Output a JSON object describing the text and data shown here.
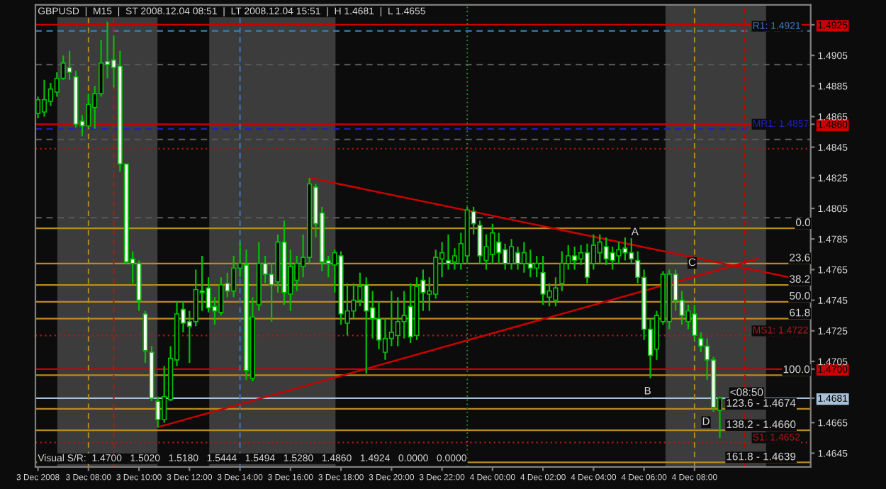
{
  "chart_data": {
    "type": "candlestick",
    "title": "GBPUSD  |  M15  |  ST 2008.12.04 08:51  |  LT 2008.12.04 15:51  |  H 1.4681  |  L 1.4655",
    "color": "#00c000",
    "x": [
      "2008-12-03T06:00",
      "2008-12-03T06:15",
      "2008-12-03T06:30",
      "2008-12-03T06:45",
      "2008-12-03T07:00",
      "2008-12-03T07:15",
      "2008-12-03T07:30",
      "2008-12-03T07:45",
      "2008-12-03T08:00",
      "2008-12-03T08:15",
      "2008-12-03T08:30",
      "2008-12-03T08:45",
      "2008-12-03T09:00",
      "2008-12-03T09:15",
      "2008-12-03T09:30",
      "2008-12-03T09:45",
      "2008-12-03T10:00",
      "2008-12-03T10:15",
      "2008-12-03T10:30",
      "2008-12-03T10:45",
      "2008-12-03T11:00",
      "2008-12-03T11:15",
      "2008-12-03T11:30",
      "2008-12-03T11:45",
      "2008-12-03T12:00",
      "2008-12-03T12:15",
      "2008-12-03T12:30",
      "2008-12-03T12:45",
      "2008-12-03T13:00",
      "2008-12-03T13:15",
      "2008-12-03T13:30",
      "2008-12-03T13:45",
      "2008-12-03T14:00",
      "2008-12-03T14:15",
      "2008-12-03T14:30",
      "2008-12-03T14:45",
      "2008-12-03T15:00",
      "2008-12-03T15:15",
      "2008-12-03T15:30",
      "2008-12-03T15:45",
      "2008-12-03T16:00",
      "2008-12-03T16:15",
      "2008-12-03T16:30",
      "2008-12-03T16:45",
      "2008-12-03T17:00",
      "2008-12-03T17:15",
      "2008-12-03T17:30",
      "2008-12-03T17:45",
      "2008-12-03T18:00",
      "2008-12-03T18:15",
      "2008-12-03T18:30",
      "2008-12-03T18:45",
      "2008-12-03T19:00",
      "2008-12-03T19:15",
      "2008-12-03T19:30",
      "2008-12-03T19:45",
      "2008-12-03T20:00",
      "2008-12-03T20:15",
      "2008-12-03T20:30",
      "2008-12-03T20:45",
      "2008-12-03T21:00",
      "2008-12-03T21:15",
      "2008-12-03T21:30",
      "2008-12-03T21:45",
      "2008-12-03T22:00",
      "2008-12-03T22:15",
      "2008-12-03T22:30",
      "2008-12-03T22:45",
      "2008-12-03T23:00",
      "2008-12-03T23:15",
      "2008-12-03T23:30",
      "2008-12-03T23:45",
      "2008-12-04T00:00",
      "2008-12-04T00:15",
      "2008-12-04T00:30",
      "2008-12-04T00:45",
      "2008-12-04T01:00",
      "2008-12-04T01:15",
      "2008-12-04T01:30",
      "2008-12-04T01:45",
      "2008-12-04T02:00",
      "2008-12-04T02:15",
      "2008-12-04T02:30",
      "2008-12-04T02:45",
      "2008-12-04T03:00",
      "2008-12-04T03:15",
      "2008-12-04T03:30",
      "2008-12-04T03:45",
      "2008-12-04T04:00",
      "2008-12-04T04:15",
      "2008-12-04T04:30",
      "2008-12-04T04:45",
      "2008-12-04T05:00",
      "2008-12-04T05:15",
      "2008-12-04T05:30",
      "2008-12-04T05:45",
      "2008-12-04T06:00",
      "2008-12-04T06:15",
      "2008-12-04T06:30",
      "2008-12-04T06:45",
      "2008-12-04T07:00",
      "2008-12-04T07:15",
      "2008-12-04T07:30",
      "2008-12-04T07:45",
      "2008-12-04T08:00",
      "2008-12-04T08:15",
      "2008-12-04T08:30",
      "2008-12-04T08:45",
      "2008-12-04T09:00"
    ],
    "ohlc": [
      [
        1.4867,
        1.4878,
        1.4864,
        1.4876
      ],
      [
        1.4868,
        1.4889,
        1.4865,
        1.4876
      ],
      [
        1.4875,
        1.4887,
        1.4872,
        1.4883
      ],
      [
        1.4881,
        1.4894,
        1.4878,
        1.489
      ],
      [
        1.489,
        1.4905,
        1.4889,
        1.49
      ],
      [
        1.4897,
        1.4908,
        1.4889,
        1.4894
      ],
      [
        1.4891,
        1.4895,
        1.4858,
        1.486
      ],
      [
        1.4862,
        1.4866,
        1.4852,
        1.4859
      ],
      [
        1.4859,
        1.488,
        1.4858,
        1.4873
      ],
      [
        1.4871,
        1.4885,
        1.4857,
        1.488
      ],
      [
        1.488,
        1.4915,
        1.4878,
        1.49
      ],
      [
        1.4901,
        1.4927,
        1.489,
        1.4899
      ],
      [
        1.4902,
        1.4918,
        1.4884,
        1.4897
      ],
      [
        1.4898,
        1.4908,
        1.4829,
        1.4834
      ],
      [
        1.4834,
        1.4834,
        1.4769,
        1.477
      ],
      [
        1.4772,
        1.4777,
        1.4756,
        1.4769
      ],
      [
        1.4769,
        1.4771,
        1.4738,
        1.4745
      ],
      [
        1.4736,
        1.4738,
        1.4704,
        1.4712
      ],
      [
        1.4711,
        1.4715,
        1.4679,
        1.4681
      ],
      [
        1.4679,
        1.4682,
        1.4662,
        1.4667
      ],
      [
        1.4667,
        1.4702,
        1.4665,
        1.4682
      ],
      [
        1.468,
        1.4715,
        1.4679,
        1.4707
      ],
      [
        1.4706,
        1.4744,
        1.4702,
        1.4736
      ],
      [
        1.4739,
        1.4744,
        1.4724,
        1.473
      ],
      [
        1.4731,
        1.4738,
        1.4704,
        1.4728
      ],
      [
        1.4731,
        1.4765,
        1.4728,
        1.4752
      ],
      [
        1.4751,
        1.4774,
        1.4738,
        1.475
      ],
      [
        1.4753,
        1.476,
        1.4737,
        1.474
      ],
      [
        1.4741,
        1.4747,
        1.4729,
        1.4738
      ],
      [
        1.4737,
        1.476,
        1.4735,
        1.4755
      ],
      [
        1.4756,
        1.4763,
        1.4747,
        1.4751
      ],
      [
        1.4751,
        1.4774,
        1.4747,
        1.4766
      ],
      [
        1.4766,
        1.4783,
        1.476,
        1.4769
      ],
      [
        1.4768,
        1.4778,
        1.4693,
        1.4699
      ],
      [
        1.4694,
        1.4747,
        1.4692,
        1.4734
      ],
      [
        1.4742,
        1.4783,
        1.4738,
        1.4769
      ],
      [
        1.4769,
        1.4774,
        1.4756,
        1.4762
      ],
      [
        1.4762,
        1.4769,
        1.4731,
        1.4755
      ],
      [
        1.4757,
        1.4788,
        1.475,
        1.4783
      ],
      [
        1.4783,
        1.4797,
        1.4742,
        1.475
      ],
      [
        1.4749,
        1.4778,
        1.4738,
        1.4767
      ],
      [
        1.4758,
        1.4774,
        1.4751,
        1.4769
      ],
      [
        1.4767,
        1.4788,
        1.476,
        1.4773
      ],
      [
        1.4773,
        1.4825,
        1.4769,
        1.4821
      ],
      [
        1.4819,
        1.4821,
        1.4786,
        1.4795
      ],
      [
        1.4802,
        1.4806,
        1.4764,
        1.477
      ],
      [
        1.4771,
        1.4774,
        1.476,
        1.4769
      ],
      [
        1.4768,
        1.4778,
        1.475,
        1.4776
      ],
      [
        1.4774,
        1.4777,
        1.4729,
        1.4736
      ],
      [
        1.473,
        1.4756,
        1.4722,
        1.4738
      ],
      [
        1.4738,
        1.4756,
        1.4733,
        1.4745
      ],
      [
        1.4745,
        1.4763,
        1.4741,
        1.4754
      ],
      [
        1.4755,
        1.476,
        1.4697,
        1.4738
      ],
      [
        1.474,
        1.4751,
        1.472,
        1.4733
      ],
      [
        1.4733,
        1.4744,
        1.4713,
        1.4719
      ],
      [
        1.4711,
        1.4733,
        1.4706,
        1.472
      ],
      [
        1.472,
        1.4751,
        1.4715,
        1.4724
      ],
      [
        1.4722,
        1.4747,
        1.4715,
        1.4731
      ],
      [
        1.4731,
        1.4751,
        1.472,
        1.4735
      ],
      [
        1.4741,
        1.4756,
        1.4717,
        1.4721
      ],
      [
        1.4722,
        1.476,
        1.4719,
        1.4754
      ],
      [
        1.4758,
        1.4765,
        1.4738,
        1.475
      ],
      [
        1.4749,
        1.476,
        1.4738,
        1.4751
      ],
      [
        1.4749,
        1.4778,
        1.4746,
        1.4773
      ],
      [
        1.4772,
        1.4783,
        1.476,
        1.4776
      ],
      [
        1.4771,
        1.4788,
        1.4765,
        1.4769
      ],
      [
        1.477,
        1.4779,
        1.4765,
        1.4774
      ],
      [
        1.4769,
        1.4789,
        1.4765,
        1.4782
      ],
      [
        1.4774,
        1.4806,
        1.4769,
        1.4804
      ],
      [
        1.4803,
        1.4806,
        1.4788,
        1.4795
      ],
      [
        1.4794,
        1.4797,
        1.4769,
        1.4774
      ],
      [
        1.4771,
        1.4788,
        1.4765,
        1.478
      ],
      [
        1.4775,
        1.4795,
        1.4769,
        1.4789
      ],
      [
        1.4783,
        1.4789,
        1.4769,
        1.4776
      ],
      [
        1.4778,
        1.4782,
        1.4765,
        1.4769
      ],
      [
        1.4769,
        1.4785,
        1.4765,
        1.478
      ],
      [
        1.4776,
        1.478,
        1.4765,
        1.4769
      ],
      [
        1.4769,
        1.4783,
        1.4763,
        1.4776
      ],
      [
        1.4769,
        1.4778,
        1.476,
        1.4766
      ],
      [
        1.4766,
        1.4774,
        1.476,
        1.4769
      ],
      [
        1.4763,
        1.4774,
        1.4742,
        1.4749
      ],
      [
        1.4747,
        1.4756,
        1.4741,
        1.4751
      ],
      [
        1.4745,
        1.476,
        1.4741,
        1.4753
      ],
      [
        1.4756,
        1.4777,
        1.4751,
        1.4769
      ],
      [
        1.4769,
        1.4781,
        1.4765,
        1.4774
      ],
      [
        1.4774,
        1.478,
        1.4765,
        1.4771
      ],
      [
        1.4772,
        1.4781,
        1.4768,
        1.4776
      ],
      [
        1.4776,
        1.4782,
        1.4756,
        1.476
      ],
      [
        1.4769,
        1.4788,
        1.4765,
        1.4781
      ],
      [
        1.4776,
        1.4788,
        1.4769,
        1.4783
      ],
      [
        1.478,
        1.4786,
        1.4768,
        1.4772
      ],
      [
        1.4776,
        1.478,
        1.4765,
        1.4771
      ],
      [
        1.4774,
        1.4783,
        1.4769,
        1.4778
      ],
      [
        1.4779,
        1.4786,
        1.4771,
        1.4776
      ],
      [
        1.4776,
        1.4786,
        1.4769,
        1.4772
      ],
      [
        1.4771,
        1.4777,
        1.4756,
        1.476
      ],
      [
        1.476,
        1.4765,
        1.4719,
        1.4726
      ],
      [
        1.4726,
        1.4733,
        1.4694,
        1.4709
      ],
      [
        1.4713,
        1.4738,
        1.4706,
        1.4735
      ],
      [
        1.4731,
        1.4764,
        1.4729,
        1.4762
      ],
      [
        1.4731,
        1.4765,
        1.4726,
        1.4762
      ],
      [
        1.4762,
        1.4765,
        1.4738,
        1.4745
      ],
      [
        1.4745,
        1.4751,
        1.4729,
        1.4735
      ],
      [
        1.4731,
        1.4742,
        1.4726,
        1.4738
      ],
      [
        1.4736,
        1.4742,
        1.4719,
        1.4722
      ],
      [
        1.472,
        1.4724,
        1.4711,
        1.4715
      ],
      [
        1.4715,
        1.472,
        1.4693,
        1.4706
      ],
      [
        1.4706,
        1.4708,
        1.4672,
        1.4675
      ],
      [
        1.4673,
        1.4682,
        1.4655,
        1.4681
      ]
    ],
    "series": [
      {
        "type": "line",
        "x": [
          "2008-12-03T16:45",
          "2008-12-04T11:45"
        ],
        "values": [
          1.4825,
          1.476
        ],
        "color": "#cc0000"
      },
      {
        "type": "line",
        "x": [
          "2008-12-03T10:45",
          "2008-12-04T10:30"
        ],
        "values": [
          1.4662,
          1.4772
        ],
        "color": "#cc0000"
      }
    ],
    "xlim": [
      "2008-12-03T05:54",
      "2008-12-04T12:36"
    ],
    "xticks": [
      {
        "value": "2008-12-03T06:00",
        "label": "3 Dec 2008"
      },
      {
        "value": "2008-12-03T08:00",
        "label": "3 Dec 08:00"
      },
      {
        "value": "2008-12-03T10:00",
        "label": "3 Dec 10:00"
      },
      {
        "value": "2008-12-03T12:00",
        "label": "3 Dec 12:00"
      },
      {
        "value": "2008-12-03T14:00",
        "label": "3 Dec 14:00"
      },
      {
        "value": "2008-12-03T16:00",
        "label": "3 Dec 16:00"
      },
      {
        "value": "2008-12-03T18:00",
        "label": "3 Dec 18:00"
      },
      {
        "value": "2008-12-03T20:00",
        "label": "3 Dec 20:00"
      },
      {
        "value": "2008-12-03T22:00",
        "label": "3 Dec 22:00"
      },
      {
        "value": "2008-12-04T00:00",
        "label": "4 Dec 00:00"
      },
      {
        "value": "2008-12-04T02:00",
        "label": "4 Dec 02:00"
      },
      {
        "value": "2008-12-04T04:00",
        "label": "4 Dec 04:00"
      },
      {
        "value": "2008-12-04T06:00",
        "label": "4 Dec 06:00"
      },
      {
        "value": "2008-12-04T08:00",
        "label": "4 Dec 08:00"
      }
    ],
    "ylim": [
      1.4636,
      1.4938
    ],
    "yticks": [
      1.4645,
      1.4665,
      1.4681,
      {
        "value": 1.47,
        "label": "1.4700"
      },
      1.4705,
      1.4725,
      1.4745,
      1.4765,
      1.4785,
      1.4805,
      1.4825,
      1.4845,
      {
        "value": 1.486,
        "label": "1.4860"
      },
      1.4865,
      1.4885,
      1.4905,
      1.4925
    ],
    "bands": [
      {
        "axis": "x",
        "from": "2008-12-03T06:46",
        "to": "2008-12-03T10:44",
        "color": "#3c3c3c"
      },
      {
        "axis": "x",
        "from": "2008-12-03T12:47",
        "to": "2008-12-03T17:47",
        "color": "#3c3c3c"
      },
      {
        "axis": "x",
        "from": "2008-12-04T06:51",
        "to": "2008-12-04T10:50",
        "color": "#3c3c3c"
      }
    ],
    "ref_lines": [
      {
        "axis": "y",
        "value": 1.4925,
        "label": null,
        "color": "#cc0000",
        "line_style": "solid"
      },
      {
        "axis": "y",
        "value": 1.486,
        "label": null,
        "color": "#cc0000",
        "line_style": "solid"
      },
      {
        "axis": "y",
        "value": 1.47,
        "label": null,
        "color": "#cc0000",
        "line_style": "solid"
      },
      {
        "axis": "y",
        "value": 1.4681,
        "label": null,
        "color": "#a8c0d8",
        "line_style": "solid"
      },
      {
        "axis": "y",
        "value": 1.4921,
        "label": "R1: 1.4921",
        "color": "#3a78c8",
        "line_style": "dashed"
      },
      {
        "axis": "y",
        "value": 1.4857,
        "label": "MR1: 1.4857",
        "color": "#2020c0",
        "line_style": "dashed"
      },
      {
        "axis": "y",
        "value": 1.4722,
        "label": "MS1: 1.4722",
        "color": "#b01818",
        "line_style": "dotted"
      },
      {
        "axis": "y",
        "value": 1.4652,
        "label": "S1: 1.4652",
        "color": "#b01818",
        "line_style": "dotted"
      },
      {
        "axis": "y",
        "value": 1.4899,
        "label": null,
        "color": "#555555",
        "line_style": "dashed"
      },
      {
        "axis": "y",
        "value": 1.485,
        "label": null,
        "color": "#555555",
        "line_style": "dashed"
      },
      {
        "axis": "y",
        "value": 1.4799,
        "label": null,
        "color": "#555555",
        "line_style": "dashed"
      },
      {
        "axis": "y",
        "value": 1.4844,
        "label": null,
        "color": "#a01818",
        "line_style": "dotted"
      },
      {
        "axis": "y",
        "value": 1.4792,
        "label": null,
        "color": "#b88a20",
        "line_style": "solid"
      },
      {
        "axis": "y",
        "value": 1.4769,
        "label": null,
        "color": "#b88a20",
        "line_style": "solid"
      },
      {
        "axis": "y",
        "value": 1.4755,
        "label": null,
        "color": "#b88a20",
        "line_style": "solid"
      },
      {
        "axis": "y",
        "value": 1.4744,
        "label": null,
        "color": "#b88a20",
        "line_style": "solid"
      },
      {
        "axis": "y",
        "value": 1.4733,
        "label": null,
        "color": "#b88a20",
        "line_style": "solid"
      },
      {
        "axis": "y",
        "value": 1.4696,
        "label": null,
        "color": "#b88a20",
        "line_style": "solid"
      },
      {
        "axis": "y",
        "value": 1.4674,
        "label": null,
        "color": "#b88a20",
        "line_style": "solid"
      },
      {
        "axis": "y",
        "value": 1.466,
        "label": null,
        "color": "#b88a20",
        "line_style": "solid"
      },
      {
        "axis": "y",
        "value": 1.4639,
        "label": null,
        "color": "#b88a20",
        "line_style": "solid"
      },
      {
        "axis": "x",
        "value": "2008-12-03T08:00",
        "label": null,
        "color": "#b88a20",
        "line_style": "dashed"
      },
      {
        "axis": "x",
        "value": "2008-12-03T09:00",
        "label": null,
        "color": "#b01818",
        "line_style": "dashed"
      },
      {
        "axis": "x",
        "value": "2008-12-03T14:00",
        "label": null,
        "color": "#3a78c8",
        "line_style": "dashed"
      },
      {
        "axis": "x",
        "value": "2008-12-03T23:00",
        "label": null,
        "color": "#2a8a2a",
        "line_style": "dotted"
      },
      {
        "axis": "x",
        "value": "2008-12-04T08:00",
        "label": null,
        "color": "#b88a20",
        "line_style": "dashed"
      },
      {
        "axis": "x",
        "value": "2008-12-04T10:00",
        "label": null,
        "color": "#cc0000",
        "line_style": "dashed"
      }
    ],
    "annotations": [
      "Visual S/R:  1.4700   1.5020   1.5180   1.5444   1.5494   1.5280   1.4860   1.4924   0.0000   0.0000",
      {
        "text": "A",
        "x": "2008-12-04T05:30",
        "y": 1.4786
      },
      {
        "text": "B",
        "x": "2008-12-04T06:00",
        "y": 1.4682
      },
      {
        "text": "C",
        "x": "2008-12-04T07:45",
        "y": 1.4766
      },
      {
        "text": "D",
        "x": "2008-12-04T08:18",
        "y": 1.4662
      },
      {
        "text": "<08:50",
        "x": "2008-12-04T09:24",
        "y": 1.4681
      },
      {
        "text": "0.0",
        "x": "2008-12-04T12:00",
        "y": 1.4792
      },
      {
        "text": "23.6",
        "x": "2008-12-04T11:45",
        "y": 1.4769
      },
      {
        "text": "38.2",
        "x": "2008-12-04T11:45",
        "y": 1.4755
      },
      {
        "text": "50.0",
        "x": "2008-12-04T11:45",
        "y": 1.4744
      },
      {
        "text": "61.8",
        "x": "2008-12-04T11:45",
        "y": 1.4733
      },
      {
        "text": "100.0",
        "x": "2008-12-04T11:30",
        "y": 1.4696
      },
      {
        "text": "123.6 - 1.4674",
        "x": "2008-12-04T09:15",
        "y": 1.4674
      },
      {
        "text": "138.2 - 1.4660",
        "x": "2008-12-04T09:15",
        "y": 1.466
      },
      {
        "text": "161.8 - 1.4639",
        "x": "2008-12-04T09:15",
        "y": 1.4639
      }
    ],
    "grid": false,
    "legend": false
  }
}
